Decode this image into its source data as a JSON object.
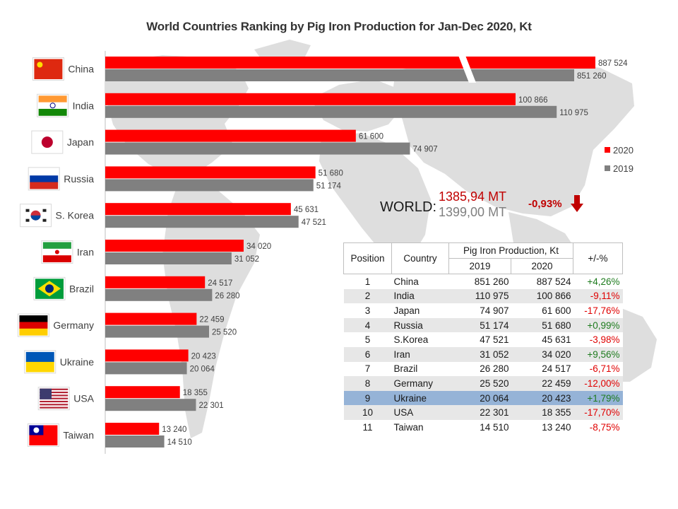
{
  "chart_data": {
    "type": "bar",
    "orientation": "horizontal",
    "title": "World Countries Ranking by Pig Iron Production for Jan-Dec 2020, Kt",
    "categories": [
      "China",
      "India",
      "Japan",
      "Russia",
      "S. Korea",
      "Iran",
      "Brazil",
      "Germany",
      "Ukraine",
      "USA",
      "Taiwan"
    ],
    "series": [
      {
        "name": "2020",
        "color": "#ff0000",
        "values": [
          887524,
          100866,
          61600,
          51680,
          45631,
          34020,
          24517,
          22459,
          20423,
          18355,
          13240
        ],
        "labels": [
          "887 524",
          "100 866",
          "61 600",
          "51 680",
          "45 631",
          "34 020",
          "24 517",
          "22 459",
          "20 423",
          "18 355",
          "13 240"
        ]
      },
      {
        "name": "2019",
        "color": "#808080",
        "values": [
          851260,
          110975,
          74907,
          51174,
          47521,
          31052,
          26280,
          25520,
          20064,
          22301,
          14510
        ],
        "labels": [
          "851 260",
          "110 975",
          "74 907",
          "51 174",
          "47 521",
          "31 052",
          "26 280",
          "25 520",
          "20 064",
          "22 301",
          "14 510"
        ]
      }
    ],
    "axis_break": {
      "series_index": 0,
      "category_index": 0
    },
    "flags": [
      "china",
      "india",
      "japan",
      "russia",
      "south-korea",
      "iran",
      "brazil",
      "germany",
      "ukraine",
      "usa",
      "taiwan"
    ],
    "legend": {
      "placement": "right",
      "items": [
        {
          "label": "2020",
          "color": "#ff0000"
        },
        {
          "label": "2019",
          "color": "#808080"
        }
      ]
    },
    "grid": false
  },
  "world": {
    "label": "WORLD:",
    "value_2020": "1385,94 MT",
    "value_2019": "1399,00 MT",
    "change": "-0,93%",
    "change_icon": "down-arrow-icon"
  },
  "table": {
    "headers": {
      "position": "Position",
      "country": "Country",
      "production": "Pig Iron Production, Kt",
      "y2019": "2019",
      "y2020": "2020",
      "change": "+/-%"
    },
    "highlight_row": 8,
    "rows": [
      {
        "pos": "1",
        "country": "China",
        "v2019": "851 260",
        "v2020": "887 524",
        "change": "+4,26%"
      },
      {
        "pos": "2",
        "country": "India",
        "v2019": "110 975",
        "v2020": "100 866",
        "change": "-9,11%"
      },
      {
        "pos": "3",
        "country": "Japan",
        "v2019": "74 907",
        "v2020": "61 600",
        "change": "-17,76%"
      },
      {
        "pos": "4",
        "country": "Russia",
        "v2019": "51 174",
        "v2020": "51 680",
        "change": "+0,99%"
      },
      {
        "pos": "5",
        "country": "S.Korea",
        "v2019": "47 521",
        "v2020": "45 631",
        "change": "-3,98%"
      },
      {
        "pos": "6",
        "country": "Iran",
        "v2019": "31 052",
        "v2020": "34 020",
        "change": "+9,56%"
      },
      {
        "pos": "7",
        "country": "Brazil",
        "v2019": "26 280",
        "v2020": "24 517",
        "change": "-6,71%"
      },
      {
        "pos": "8",
        "country": "Germany",
        "v2019": "25 520",
        "v2020": "22 459",
        "change": "-12,00%"
      },
      {
        "pos": "9",
        "country": "Ukraine",
        "v2019": "20 064",
        "v2020": "20 423",
        "change": "+1,79%"
      },
      {
        "pos": "10",
        "country": "USA",
        "v2019": "22 301",
        "v2020": "18 355",
        "change": "-17,70%"
      },
      {
        "pos": "11",
        "country": "Taiwan",
        "v2019": "14 510",
        "v2020": "13 240",
        "change": "-8,75%"
      }
    ]
  },
  "colors": {
    "bar_2020": "#ff0000",
    "bar_2019": "#808080",
    "negative": "#e00000",
    "positive": "#1e7b1e",
    "highlight": "#95b3d7",
    "map": "#dcdcdc"
  }
}
